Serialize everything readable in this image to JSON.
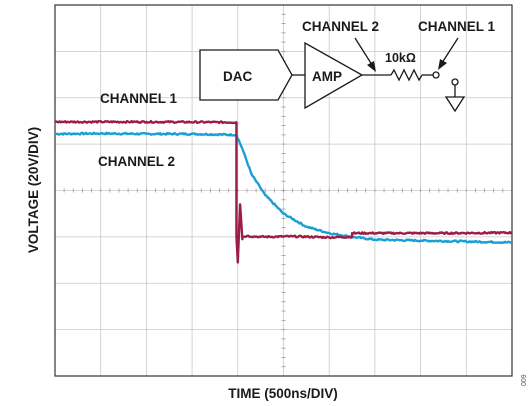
{
  "chart_data": {
    "type": "line",
    "title": "",
    "xlabel": "TIME (500ns/DIV)",
    "ylabel": "VOLTAGE (20V/DIV)",
    "x_divisions": 10,
    "y_divisions": 8,
    "grid": true,
    "series": [
      {
        "name": "CHANNEL 1",
        "color": "#9b1f45",
        "x": [
          0,
          2.0,
          3.97,
          3.97,
          4.0,
          4.05,
          4.1,
          4.1,
          4.2,
          4.5,
          5.2,
          6.0,
          6.5,
          6.5,
          7.5,
          8.5,
          10
        ],
        "y": [
          1.48,
          1.48,
          1.47,
          -0.98,
          -1.55,
          -0.3,
          -1.05,
          -1.0,
          -0.98,
          -1.0,
          -0.99,
          -1.01,
          -1.0,
          -0.92,
          -0.92,
          -0.92,
          -0.91
        ]
      },
      {
        "name": "CHANNEL 2",
        "color": "#1a9fd4",
        "x": [
          0,
          1.0,
          2.0,
          3.0,
          3.97,
          4.1,
          4.3,
          4.6,
          5.0,
          5.5,
          6.0,
          6.5,
          7.0,
          8.0,
          9.0,
          10
        ],
        "y": [
          1.22,
          1.23,
          1.22,
          1.22,
          1.2,
          0.9,
          0.35,
          -0.1,
          -0.5,
          -0.78,
          -0.92,
          -1.0,
          -1.06,
          -1.08,
          -1.1,
          -1.12
        ]
      }
    ],
    "annotations": [
      {
        "text": "CHANNEL 1"
      },
      {
        "text": "CHANNEL 2"
      }
    ],
    "schematic": {
      "dac_label": "DAC",
      "amp_label": "AMP",
      "resistor_label": "10kΩ",
      "probe_ch2_label": "CHANNEL 2",
      "probe_ch1_label": "CHANNEL 1"
    },
    "figure_number": "009"
  }
}
